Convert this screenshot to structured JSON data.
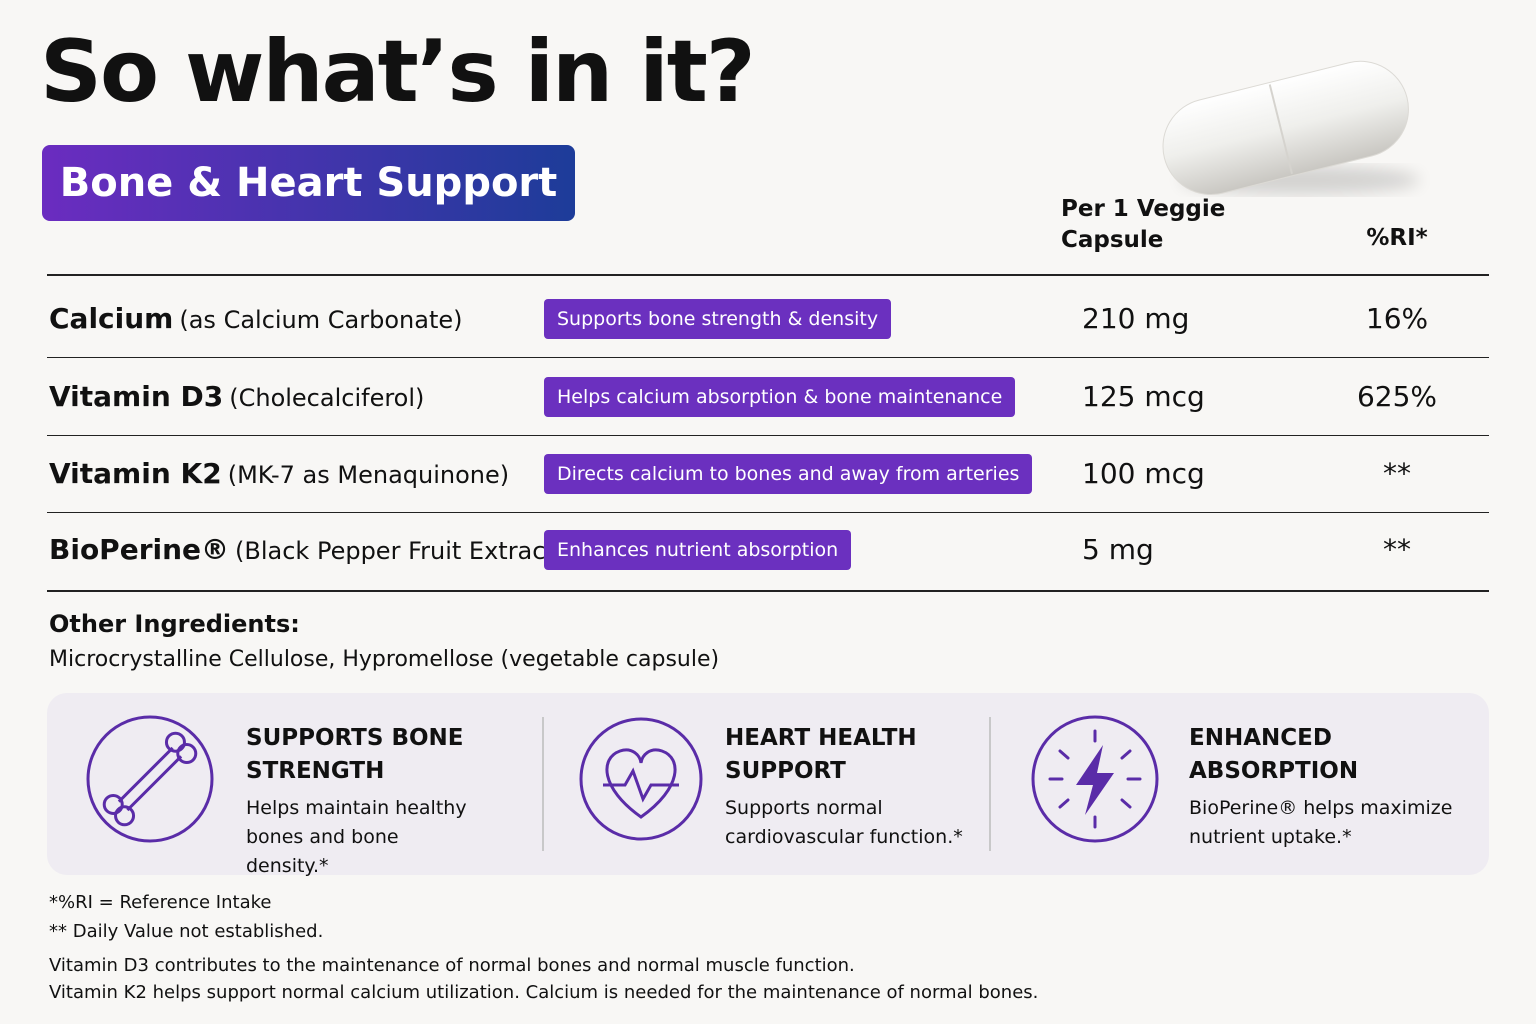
{
  "title": "So what’s in it?",
  "badge": "Bone & Heart Support",
  "table": {
    "headers": {
      "amount": "Per 1 Veggie Capsule",
      "ri": "%RI*"
    },
    "rows": [
      {
        "name": "Calcium",
        "detail": "(as Calcium Carbonate)",
        "benefit": "Supports bone strength & density",
        "amount": "210 mg",
        "ri": "16%"
      },
      {
        "name": "Vitamin D3",
        "detail": "(Cholecalciferol)",
        "benefit": "Helps calcium absorption & bone maintenance",
        "amount": "125 mcg",
        "ri": "625%"
      },
      {
        "name": "Vitamin K2",
        "detail": "(MK-7 as Menaquinone)",
        "benefit": "Directs calcium to bones and away from arteries",
        "amount": "100 mcg",
        "ri": "**"
      },
      {
        "name": "BioPerine®",
        "detail": "(Black Pepper Fruit Extract)",
        "benefit": "Enhances nutrient absorption",
        "amount": "5 mg",
        "ri": "**"
      }
    ]
  },
  "other_ingredients": {
    "label": "Other Ingredients:",
    "text": "Microcrystalline Cellulose, Hypromellose (vegetable capsule)"
  },
  "features": [
    {
      "title": "SUPPORTS BONE STRENGTH",
      "text": "Helps maintain healthy bones and bone density.*"
    },
    {
      "title": "HEART HEALTH SUPPORT",
      "text": "Supports normal cardiovascular function.*"
    },
    {
      "title": "ENHANCED ABSORPTION",
      "text": "BioPerine® helps maximize nutrient uptake.*"
    }
  ],
  "footnotes": [
    "*%RI = Reference Intake",
    "** Daily Value not established.",
    "Vitamin D3 contributes to the maintenance of normal bones and normal muscle function.",
    "Vitamin K2 helps support normal calcium utilization. Calcium is needed for the maintenance of normal bones."
  ]
}
